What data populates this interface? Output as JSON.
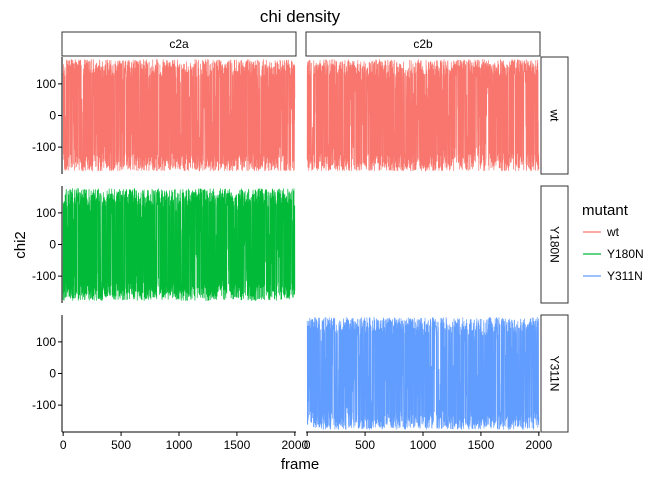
{
  "chart_data": {
    "type": "line",
    "title": "chi density",
    "xlabel": "frame",
    "ylabel": "chi2",
    "xlim": [
      -10,
      2010
    ],
    "ylim": [
      -185,
      185
    ],
    "x_ticks": [
      0,
      500,
      1000,
      1500,
      2000
    ],
    "y_ticks": [
      -100,
      0,
      100
    ],
    "columns": [
      "c2a",
      "c2b"
    ],
    "rows": [
      "wt",
      "Y180N",
      "Y311N"
    ],
    "legend": {
      "title": "mutant",
      "position": "right",
      "entries": [
        {
          "label": "wt",
          "color": "#F8766D"
        },
        {
          "label": "Y180N",
          "color": "#00BA38"
        },
        {
          "label": "Y311N",
          "color": "#619CFF"
        }
      ]
    },
    "series": [
      {
        "name": "wt",
        "column": "c2a",
        "row": "wt",
        "color": "#F8766D",
        "x_range": [
          0,
          2000
        ],
        "y_range": [
          -175,
          178
        ]
      },
      {
        "name": "wt",
        "column": "c2b",
        "row": "wt",
        "color": "#F8766D",
        "x_range": [
          0,
          2000
        ],
        "y_range": [
          -175,
          178
        ]
      },
      {
        "name": "Y180N",
        "column": "c2a",
        "row": "Y180N",
        "color": "#00BA38",
        "x_range": [
          0,
          2000
        ],
        "y_range": [
          -178,
          178
        ]
      },
      {
        "name": "Y311N",
        "column": "c2b",
        "row": "Y311N",
        "color": "#619CFF",
        "x_range": [
          0,
          2000
        ],
        "y_range": [
          -178,
          178
        ]
      }
    ],
    "grid": false
  }
}
